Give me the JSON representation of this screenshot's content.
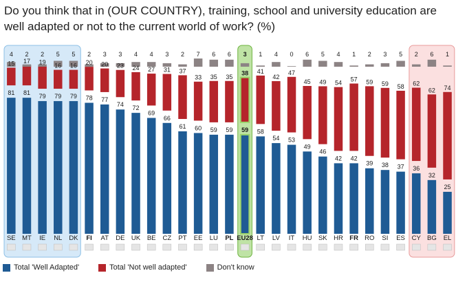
{
  "title": "Do you think that in (OUR COUNTRY), training, school and university education are well adapted or not to the current world of work? (%)",
  "chart_data": {
    "type": "bar",
    "stacked": true,
    "categories": [
      "SE",
      "MT",
      "IE",
      "NL",
      "DK",
      "FI",
      "AT",
      "DE",
      "UK",
      "BE",
      "CZ",
      "PT",
      "EE",
      "LU",
      "PL",
      "EU28",
      "LT",
      "LV",
      "IT",
      "HU",
      "SK",
      "HR",
      "FR",
      "RO",
      "SI",
      "ES",
      "CY",
      "BG",
      "EL"
    ],
    "bold_categories": [
      "FI",
      "PL",
      "EU28",
      "FR"
    ],
    "highlight_groups": [
      {
        "categories": [
          "SE",
          "MT",
          "IE",
          "NL",
          "DK"
        ],
        "color": "#d6e9f8"
      },
      {
        "categories": [
          "EU28"
        ],
        "color": "#bfe3a5"
      },
      {
        "categories": [
          "CY",
          "BG",
          "EL"
        ],
        "color": "#fbe0e0"
      }
    ],
    "series": [
      {
        "name": "Total 'Well Adapted'",
        "color": "#1f5b94",
        "values": [
          81,
          81,
          79,
          79,
          79,
          78,
          77,
          74,
          72,
          69,
          66,
          61,
          60,
          59,
          59,
          59,
          58,
          54,
          53,
          49,
          46,
          42,
          42,
          39,
          38,
          37,
          36,
          32,
          25
        ]
      },
      {
        "name": "Total 'Not well adapted'",
        "color": "#b5252b",
        "values": [
          15,
          17,
          19,
          16,
          16,
          20,
          20,
          23,
          24,
          27,
          31,
          37,
          33,
          35,
          35,
          38,
          41,
          42,
          47,
          45,
          49,
          54,
          57,
          59,
          59,
          58,
          62,
          62,
          74
        ]
      },
      {
        "name": "Don't know",
        "color": "#8c8384",
        "values": [
          4,
          2,
          2,
          5,
          5,
          2,
          3,
          3,
          4,
          4,
          3,
          2,
          7,
          6,
          6,
          3,
          1,
          4,
          0,
          6,
          5,
          4,
          1,
          2,
          3,
          5,
          2,
          6,
          1
        ]
      }
    ],
    "legend_position": "bottom-left"
  }
}
